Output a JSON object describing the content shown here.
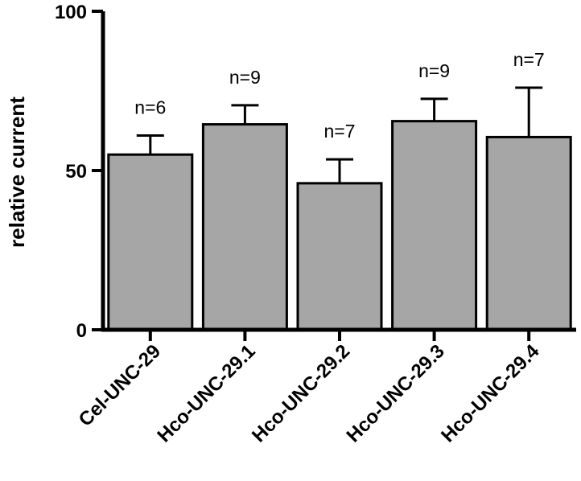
{
  "chart_data": {
    "type": "bar",
    "title": "",
    "xlabel": "",
    "ylabel": "relative current",
    "ylim": [
      0,
      100
    ],
    "yticks": [
      0,
      50,
      100
    ],
    "categories": [
      "Cel-UNC-29",
      "Hco-UNC-29.1",
      "Hco-UNC-29.2",
      "Hco-UNC-29.3",
      "Hco-UNC-29.4"
    ],
    "values": [
      55,
      64.5,
      46,
      65.5,
      60.5
    ],
    "error_upper": [
      6,
      6,
      7.5,
      7,
      15.5
    ],
    "annotations": [
      "n=6",
      "n=9",
      "n=7",
      "n=9",
      "n=7"
    ],
    "colors": {
      "bar_fill": "#a6a6a6",
      "bar_stroke": "#000000",
      "axis": "#000000"
    }
  }
}
